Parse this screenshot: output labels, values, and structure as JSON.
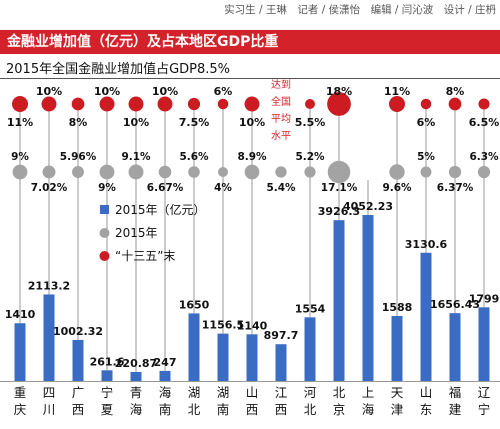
{
  "header": {
    "credits": "实习生 / 王琳　记者 / 侯潇怡　编辑 / 闫沁波　设计 / 庄枬",
    "title": "金融业增加值（亿元）及占本地区GDP比重",
    "subtitle": "2015年全国金融业增加值占GDP8.5%"
  },
  "colors": {
    "banner": "#d3222a",
    "bar": "#3b6cc4",
    "gray_dot": "#a3a3a3",
    "red_dot": "#cc1c22",
    "annotation": "#d3222a"
  },
  "chart_data": {
    "type": "bar",
    "categories": [
      "重庆",
      "四川",
      "广西",
      "宁夏",
      "青海",
      "海南",
      "湖北",
      "湖南",
      "山西",
      "江西",
      "河北",
      "北京",
      "上海",
      "天津",
      "山东",
      "福建",
      "辽宁"
    ],
    "series": [
      {
        "name": "2015年（亿元）",
        "type": "bar",
        "values": [
          1410,
          2113.2,
          1002.32,
          261.6,
          220.87,
          247,
          1650,
          1156.5,
          1140,
          897.7,
          1554,
          3926.3,
          4052.23,
          1588,
          3130.6,
          1656.43,
          1799
        ],
        "labels": [
          "1410",
          "2113.2",
          "1002.32",
          "261.6",
          "220.87",
          "247",
          "1650",
          "1156.5",
          "1140",
          "897.7",
          "1554",
          "3926.3",
          "4052.23",
          "1588",
          "3130.6",
          "1656.43",
          "1799"
        ]
      },
      {
        "name": "2015年",
        "type": "dot",
        "values": [
          9,
          7.02,
          5.96,
          9,
          9.1,
          6.67,
          5.6,
          4,
          8.9,
          5.4,
          5.2,
          17.1,
          null,
          9.6,
          5,
          6.37,
          6.3
        ],
        "labels": [
          "9%",
          "7.02%",
          "5.96%",
          "9%",
          "9.1%",
          "6.67%",
          "5.6%",
          "4%",
          "8.9%",
          "5.4%",
          "5.2%",
          "17.1%",
          "",
          "9.6%",
          "5%",
          "6.37%",
          "6.3%"
        ]
      },
      {
        "name": "“十三五”末",
        "type": "dot",
        "values": [
          11,
          10,
          8,
          10,
          10,
          10,
          7.5,
          6,
          10,
          null,
          5.5,
          18,
          null,
          11,
          6,
          8,
          6.5
        ],
        "labels": [
          "11%",
          "10%",
          "8%",
          "10%",
          "10%",
          "10%",
          "7.5%",
          "6%",
          "10%",
          "",
          "5.5%",
          "18%",
          "",
          "11%",
          "6%",
          "8%",
          "6.5%"
        ]
      }
    ],
    "annotations": [
      {
        "category": "江西",
        "text": "达到全国平均水平"
      }
    ],
    "legend_position": "center-left",
    "ylim": [
      0,
      4400
    ]
  }
}
